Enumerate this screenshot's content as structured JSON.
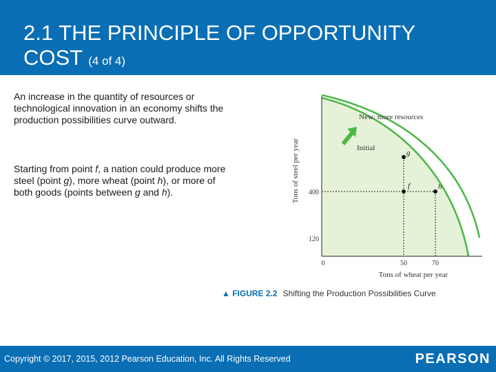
{
  "slide": {
    "title_main": "2.1 THE PRINCIPLE OF OPPORTUNITY COST",
    "title_suffix": "(4 of 4)"
  },
  "body": {
    "paragraph1": "An increase in the quantity of resources or technological innovation in an economy shifts the production possibilities curve outward.",
    "paragraph2": [
      {
        "text": "Starting from point ",
        "italic": false
      },
      {
        "text": "f",
        "italic": true
      },
      {
        "text": ", a nation could produce more steel (point ",
        "italic": false
      },
      {
        "text": "g",
        "italic": true
      },
      {
        "text": "), more wheat (point ",
        "italic": false
      },
      {
        "text": "h",
        "italic": true
      },
      {
        "text": "), or more of both goods (points between ",
        "italic": false
      },
      {
        "text": "g",
        "italic": true
      },
      {
        "text": " and ",
        "italic": false
      },
      {
        "text": "h",
        "italic": true
      },
      {
        "text": ").",
        "italic": false
      }
    ]
  },
  "figure": {
    "caption_label": "▲ FIGURE 2.2",
    "caption_title": "Shifting the Production Possibilities Curve",
    "colors": {
      "curve": "#4db848",
      "fill": "#e6f2d8",
      "arrow": "#4db848",
      "point": "#111111"
    },
    "chart_data": {
      "type": "line",
      "xlabel": "Tons of wheat per year",
      "ylabel": "Tons of steel per year",
      "x_ticks": [
        "0",
        "50",
        "70"
      ],
      "y_ticks": [
        "400",
        "120"
      ],
      "series": [
        {
          "name": "Initial"
        },
        {
          "name": "New: more resources"
        }
      ],
      "points": [
        {
          "label": "g"
        },
        {
          "label": "f",
          "x": 50,
          "y": 400
        },
        {
          "label": "h",
          "x": 70,
          "y": 400
        }
      ]
    }
  },
  "footer": {
    "copyright": "Copyright © 2017, 2015, 2012 Pearson Education, Inc. All Rights Reserved",
    "logo": "PEARSON"
  }
}
